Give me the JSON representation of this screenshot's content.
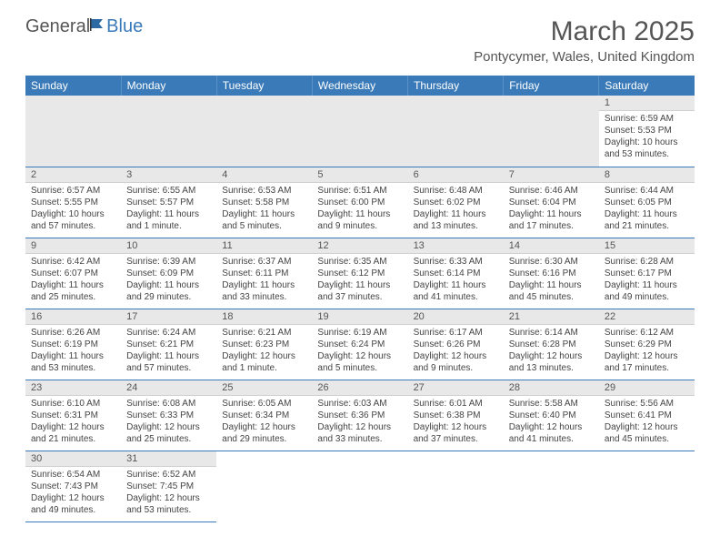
{
  "logo": {
    "general": "General",
    "blue": "Blue"
  },
  "title": "March 2025",
  "location": "Pontycymer, Wales, United Kingdom",
  "colors": {
    "header_bg": "#3a7ab8",
    "header_text": "#ffffff",
    "daynum_bg": "#e8e8e8",
    "border": "#3a7ab8",
    "text": "#444444"
  },
  "weekdays": [
    "Sunday",
    "Monday",
    "Tuesday",
    "Wednesday",
    "Thursday",
    "Friday",
    "Saturday"
  ],
  "weeks": [
    [
      null,
      null,
      null,
      null,
      null,
      null,
      {
        "n": "1",
        "sr": "Sunrise: 6:59 AM",
        "ss": "Sunset: 5:53 PM",
        "dl": "Daylight: 10 hours and 53 minutes."
      }
    ],
    [
      {
        "n": "2",
        "sr": "Sunrise: 6:57 AM",
        "ss": "Sunset: 5:55 PM",
        "dl": "Daylight: 10 hours and 57 minutes."
      },
      {
        "n": "3",
        "sr": "Sunrise: 6:55 AM",
        "ss": "Sunset: 5:57 PM",
        "dl": "Daylight: 11 hours and 1 minute."
      },
      {
        "n": "4",
        "sr": "Sunrise: 6:53 AM",
        "ss": "Sunset: 5:58 PM",
        "dl": "Daylight: 11 hours and 5 minutes."
      },
      {
        "n": "5",
        "sr": "Sunrise: 6:51 AM",
        "ss": "Sunset: 6:00 PM",
        "dl": "Daylight: 11 hours and 9 minutes."
      },
      {
        "n": "6",
        "sr": "Sunrise: 6:48 AM",
        "ss": "Sunset: 6:02 PM",
        "dl": "Daylight: 11 hours and 13 minutes."
      },
      {
        "n": "7",
        "sr": "Sunrise: 6:46 AM",
        "ss": "Sunset: 6:04 PM",
        "dl": "Daylight: 11 hours and 17 minutes."
      },
      {
        "n": "8",
        "sr": "Sunrise: 6:44 AM",
        "ss": "Sunset: 6:05 PM",
        "dl": "Daylight: 11 hours and 21 minutes."
      }
    ],
    [
      {
        "n": "9",
        "sr": "Sunrise: 6:42 AM",
        "ss": "Sunset: 6:07 PM",
        "dl": "Daylight: 11 hours and 25 minutes."
      },
      {
        "n": "10",
        "sr": "Sunrise: 6:39 AM",
        "ss": "Sunset: 6:09 PM",
        "dl": "Daylight: 11 hours and 29 minutes."
      },
      {
        "n": "11",
        "sr": "Sunrise: 6:37 AM",
        "ss": "Sunset: 6:11 PM",
        "dl": "Daylight: 11 hours and 33 minutes."
      },
      {
        "n": "12",
        "sr": "Sunrise: 6:35 AM",
        "ss": "Sunset: 6:12 PM",
        "dl": "Daylight: 11 hours and 37 minutes."
      },
      {
        "n": "13",
        "sr": "Sunrise: 6:33 AM",
        "ss": "Sunset: 6:14 PM",
        "dl": "Daylight: 11 hours and 41 minutes."
      },
      {
        "n": "14",
        "sr": "Sunrise: 6:30 AM",
        "ss": "Sunset: 6:16 PM",
        "dl": "Daylight: 11 hours and 45 minutes."
      },
      {
        "n": "15",
        "sr": "Sunrise: 6:28 AM",
        "ss": "Sunset: 6:17 PM",
        "dl": "Daylight: 11 hours and 49 minutes."
      }
    ],
    [
      {
        "n": "16",
        "sr": "Sunrise: 6:26 AM",
        "ss": "Sunset: 6:19 PM",
        "dl": "Daylight: 11 hours and 53 minutes."
      },
      {
        "n": "17",
        "sr": "Sunrise: 6:24 AM",
        "ss": "Sunset: 6:21 PM",
        "dl": "Daylight: 11 hours and 57 minutes."
      },
      {
        "n": "18",
        "sr": "Sunrise: 6:21 AM",
        "ss": "Sunset: 6:23 PM",
        "dl": "Daylight: 12 hours and 1 minute."
      },
      {
        "n": "19",
        "sr": "Sunrise: 6:19 AM",
        "ss": "Sunset: 6:24 PM",
        "dl": "Daylight: 12 hours and 5 minutes."
      },
      {
        "n": "20",
        "sr": "Sunrise: 6:17 AM",
        "ss": "Sunset: 6:26 PM",
        "dl": "Daylight: 12 hours and 9 minutes."
      },
      {
        "n": "21",
        "sr": "Sunrise: 6:14 AM",
        "ss": "Sunset: 6:28 PM",
        "dl": "Daylight: 12 hours and 13 minutes."
      },
      {
        "n": "22",
        "sr": "Sunrise: 6:12 AM",
        "ss": "Sunset: 6:29 PM",
        "dl": "Daylight: 12 hours and 17 minutes."
      }
    ],
    [
      {
        "n": "23",
        "sr": "Sunrise: 6:10 AM",
        "ss": "Sunset: 6:31 PM",
        "dl": "Daylight: 12 hours and 21 minutes."
      },
      {
        "n": "24",
        "sr": "Sunrise: 6:08 AM",
        "ss": "Sunset: 6:33 PM",
        "dl": "Daylight: 12 hours and 25 minutes."
      },
      {
        "n": "25",
        "sr": "Sunrise: 6:05 AM",
        "ss": "Sunset: 6:34 PM",
        "dl": "Daylight: 12 hours and 29 minutes."
      },
      {
        "n": "26",
        "sr": "Sunrise: 6:03 AM",
        "ss": "Sunset: 6:36 PM",
        "dl": "Daylight: 12 hours and 33 minutes."
      },
      {
        "n": "27",
        "sr": "Sunrise: 6:01 AM",
        "ss": "Sunset: 6:38 PM",
        "dl": "Daylight: 12 hours and 37 minutes."
      },
      {
        "n": "28",
        "sr": "Sunrise: 5:58 AM",
        "ss": "Sunset: 6:40 PM",
        "dl": "Daylight: 12 hours and 41 minutes."
      },
      {
        "n": "29",
        "sr": "Sunrise: 5:56 AM",
        "ss": "Sunset: 6:41 PM",
        "dl": "Daylight: 12 hours and 45 minutes."
      }
    ],
    [
      {
        "n": "30",
        "sr": "Sunrise: 6:54 AM",
        "ss": "Sunset: 7:43 PM",
        "dl": "Daylight: 12 hours and 49 minutes."
      },
      {
        "n": "31",
        "sr": "Sunrise: 6:52 AM",
        "ss": "Sunset: 7:45 PM",
        "dl": "Daylight: 12 hours and 53 minutes."
      },
      null,
      null,
      null,
      null,
      null
    ]
  ]
}
